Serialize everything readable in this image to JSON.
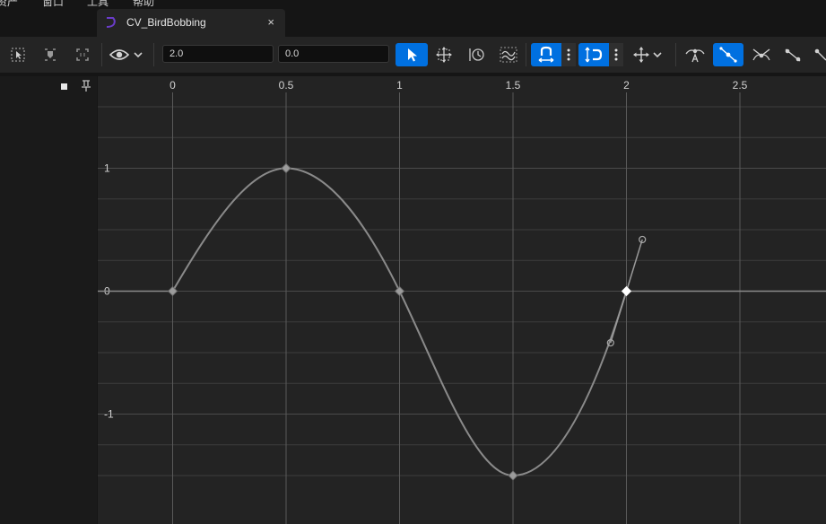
{
  "menu": {
    "items": [
      "资产",
      "窗口",
      "工具",
      "帮助"
    ]
  },
  "tab": {
    "title": "CV_BirdBobbing",
    "close": "×",
    "icon": "curve-asset-icon"
  },
  "toolbar": {
    "time_value": "2.0",
    "value_value": "0.0",
    "icons": [
      "select-keys-icon",
      "frame-selection-icon",
      "frame-all-icon",
      "visibility-eye-icon",
      "select-tool-icon",
      "transform-tool-icon",
      "retime-tool-icon",
      "multi-curve-icon",
      "snap-time-icon",
      "snap-value-icon",
      "move-axis-icon",
      "auto-tangent-icon",
      "user-tangent-icon",
      "break-tangent-icon",
      "linear-tangent-icon",
      "constant-tangent-icon"
    ]
  },
  "graph": {
    "x_ticks": [
      "0",
      "0.5",
      "1",
      "1.5",
      "2",
      "2.5"
    ],
    "y_ticks": [
      "1",
      "0",
      "-1"
    ],
    "grid_color": "#3d3d3d",
    "curve_color": "#8a8a8a"
  },
  "curve": {
    "keys": [
      {
        "t": 0,
        "v": 0
      },
      {
        "t": 0.5,
        "v": 1
      },
      {
        "t": 1,
        "v": 0
      },
      {
        "t": 1.5,
        "v": -1.5
      },
      {
        "t": 2,
        "v": 0,
        "selected": true
      }
    ],
    "tangent_handles": [
      {
        "t": 1.93,
        "v": -0.42
      },
      {
        "t": 2.07,
        "v": 0.42
      }
    ]
  }
}
